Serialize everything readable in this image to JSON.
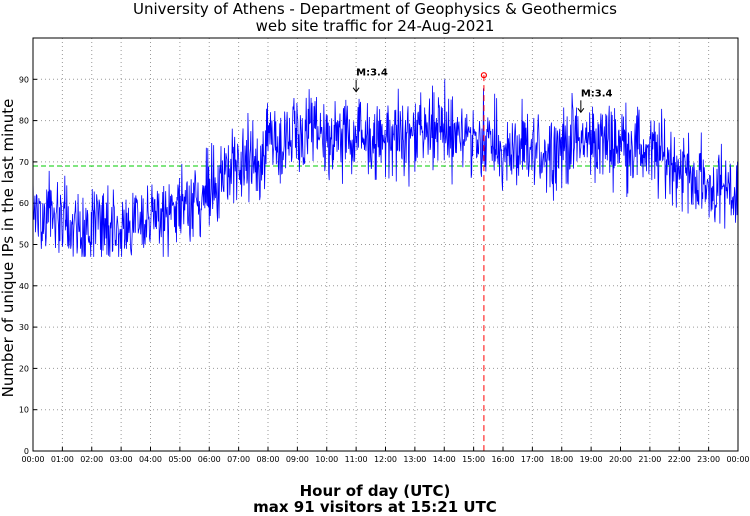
{
  "chart_data": {
    "type": "line",
    "title": "University of Athens - Department of Geophysics & Geothermics",
    "subtitle": "web site traffic for 24-Aug-2021",
    "xlabel": "Hour of day (UTC)",
    "footer": "max 91 visitors at 15:21 UTC",
    "ylabel": "Number of unique IPs in the last minute",
    "xlim": [
      0,
      24
    ],
    "ylim": [
      0,
      100
    ],
    "x_tick_labels": [
      "00:00",
      "01:00",
      "02:00",
      "03:00",
      "04:00",
      "05:00",
      "06:00",
      "07:00",
      "08:00",
      "09:00",
      "10:00",
      "11:00",
      "12:00",
      "13:00",
      "14:00",
      "15:00",
      "16:00",
      "17:00",
      "18:00",
      "19:00",
      "20:00",
      "21:00",
      "22:00",
      "23:00",
      "00:00"
    ],
    "y_ticks": [
      0,
      10,
      20,
      30,
      40,
      50,
      60,
      70,
      80,
      90
    ],
    "grid": true,
    "series": [
      {
        "name": "unique IPs per minute",
        "color": "#0000ff",
        "hourly_trend": [
          [
            0,
            59
          ],
          [
            0.5,
            58
          ],
          [
            1,
            56
          ],
          [
            1.5,
            55
          ],
          [
            2,
            54
          ],
          [
            2.5,
            54
          ],
          [
            3,
            55
          ],
          [
            3.5,
            56
          ],
          [
            4,
            56
          ],
          [
            4.5,
            57
          ],
          [
            5,
            59
          ],
          [
            5.5,
            61
          ],
          [
            6,
            64
          ],
          [
            6.5,
            67
          ],
          [
            7,
            69
          ],
          [
            7.5,
            71
          ],
          [
            8,
            73
          ],
          [
            8.5,
            75
          ],
          [
            9,
            76
          ],
          [
            9.5,
            76
          ],
          [
            10,
            76
          ],
          [
            10.5,
            76
          ],
          [
            11,
            75
          ],
          [
            11.5,
            76
          ],
          [
            12,
            76
          ],
          [
            12.5,
            76
          ],
          [
            13,
            77
          ],
          [
            13.5,
            77
          ],
          [
            14,
            78
          ],
          [
            14.5,
            77
          ],
          [
            15,
            77
          ],
          [
            15.5,
            75
          ],
          [
            16,
            72
          ],
          [
            16.5,
            72
          ],
          [
            17,
            72
          ],
          [
            17.5,
            73
          ],
          [
            18,
            74
          ],
          [
            18.5,
            75
          ],
          [
            19,
            75
          ],
          [
            19.5,
            75
          ],
          [
            20,
            75
          ],
          [
            20.5,
            74
          ],
          [
            21,
            72
          ],
          [
            21.5,
            71
          ],
          [
            22,
            69
          ],
          [
            22.5,
            66
          ],
          [
            23,
            64
          ],
          [
            23.5,
            63
          ],
          [
            24,
            62
          ]
        ],
        "noise_amplitude": 6,
        "range": [
          47,
          91
        ]
      }
    ],
    "average_line": {
      "value": 69,
      "color": "#00cc00",
      "style": "dashed"
    },
    "max_marker": {
      "time": 15.35,
      "value": 91,
      "color": "#ff0000",
      "style": "dashed"
    },
    "annotations": [
      {
        "label": "M:3.4",
        "time": 11.0,
        "value": 87
      },
      {
        "label": "M:3.4",
        "time": 18.65,
        "value": 82
      }
    ]
  }
}
